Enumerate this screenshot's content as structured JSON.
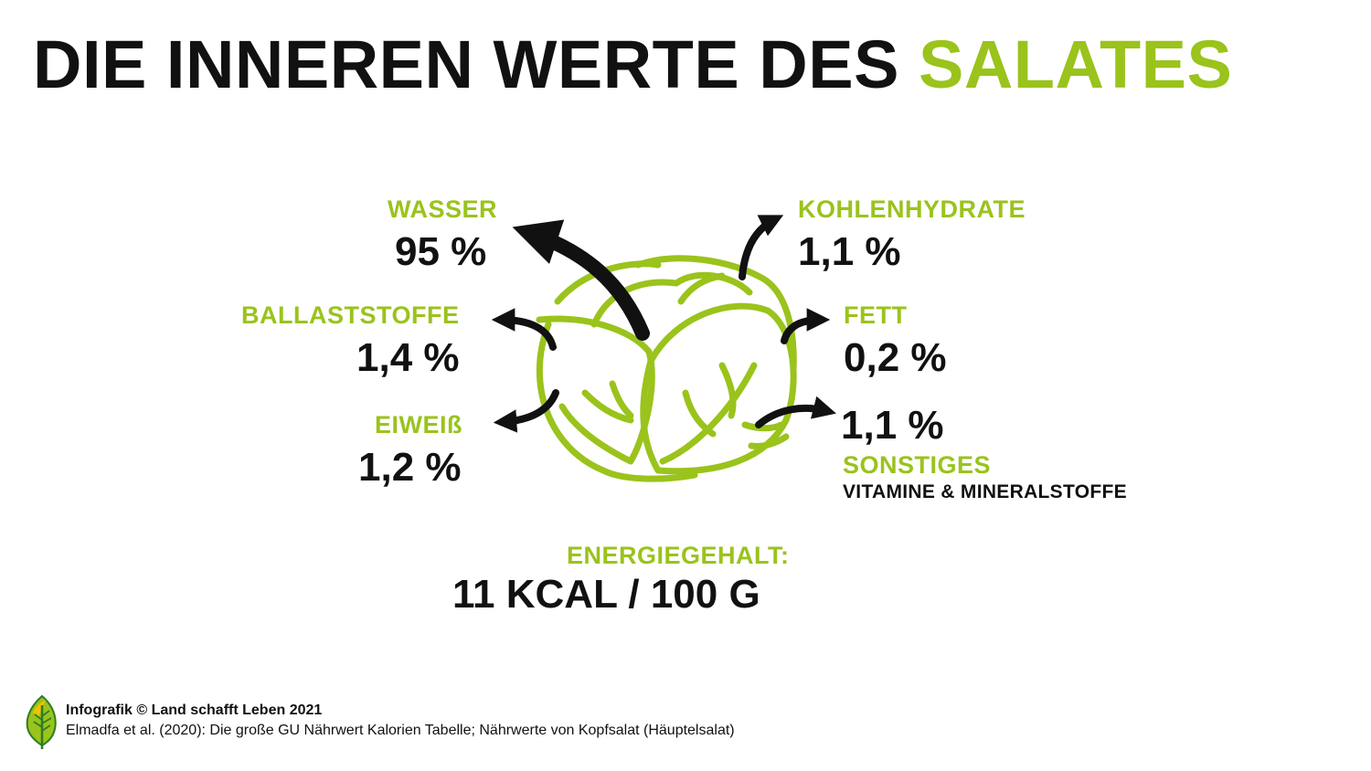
{
  "title": {
    "main": "DIE INNEREN WERTE DES",
    "highlight": "SALATES"
  },
  "nutrients": {
    "wasser": {
      "label": "WASSER",
      "value": "95 %"
    },
    "ballaststoffe": {
      "label": "BALLASTSTOFFE",
      "value": "1,4 %"
    },
    "eiweiss": {
      "label": "EIWEIß",
      "value": "1,2 %"
    },
    "kohlenhydrate": {
      "label": "KOHLENHYDRATE",
      "value": "1,1 %"
    },
    "fett": {
      "label": "FETT",
      "value": "0,2 %"
    },
    "sonstiges": {
      "label": "SONSTIGES",
      "value": "1,1 %",
      "sub": "VITAMINE & MINERALSTOFFE"
    }
  },
  "energy": {
    "label": "ENERGIEGEHALT:",
    "value": "11 KCAL / 100 G"
  },
  "footer": {
    "credit": "Infografik © Land schafft Leben 2021",
    "source": "Elmadfa et al. (2020): Die große GU Nährwert Kalorien Tabelle; Nährwerte von Kopfsalat (Häuptelsalat)"
  },
  "colors": {
    "accent": "#9ac31c",
    "text": "#111111",
    "background": "#ffffff"
  },
  "icons": [
    "lettuce-icon",
    "arrow-icon",
    "leaf-logo-icon"
  ]
}
